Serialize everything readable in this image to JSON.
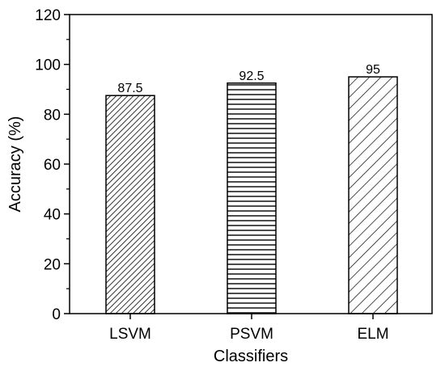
{
  "chart_data": {
    "type": "bar",
    "categories": [
      "LSVM",
      "PSVM",
      "ELM"
    ],
    "values": [
      87.5,
      92.5,
      95
    ],
    "data_labels": [
      "87.5",
      "92.5",
      "95"
    ],
    "xlabel": "Classifiers",
    "ylabel": "Accuracy (%)",
    "ylim": [
      0,
      120
    ],
    "yticks": [
      0,
      20,
      40,
      60,
      80,
      100,
      120
    ],
    "ytick_labels": [
      "0",
      "20",
      "40",
      "60",
      "80",
      "100",
      "120"
    ],
    "grid": false,
    "bar_patterns": [
      "dense-diagonal-hatch",
      "horizontal-lines",
      "wide-diagonal-hatch"
    ],
    "colors": {
      "bar_stroke": "#000000",
      "bar_fill": "#ffffff",
      "axis": "#000000"
    }
  }
}
